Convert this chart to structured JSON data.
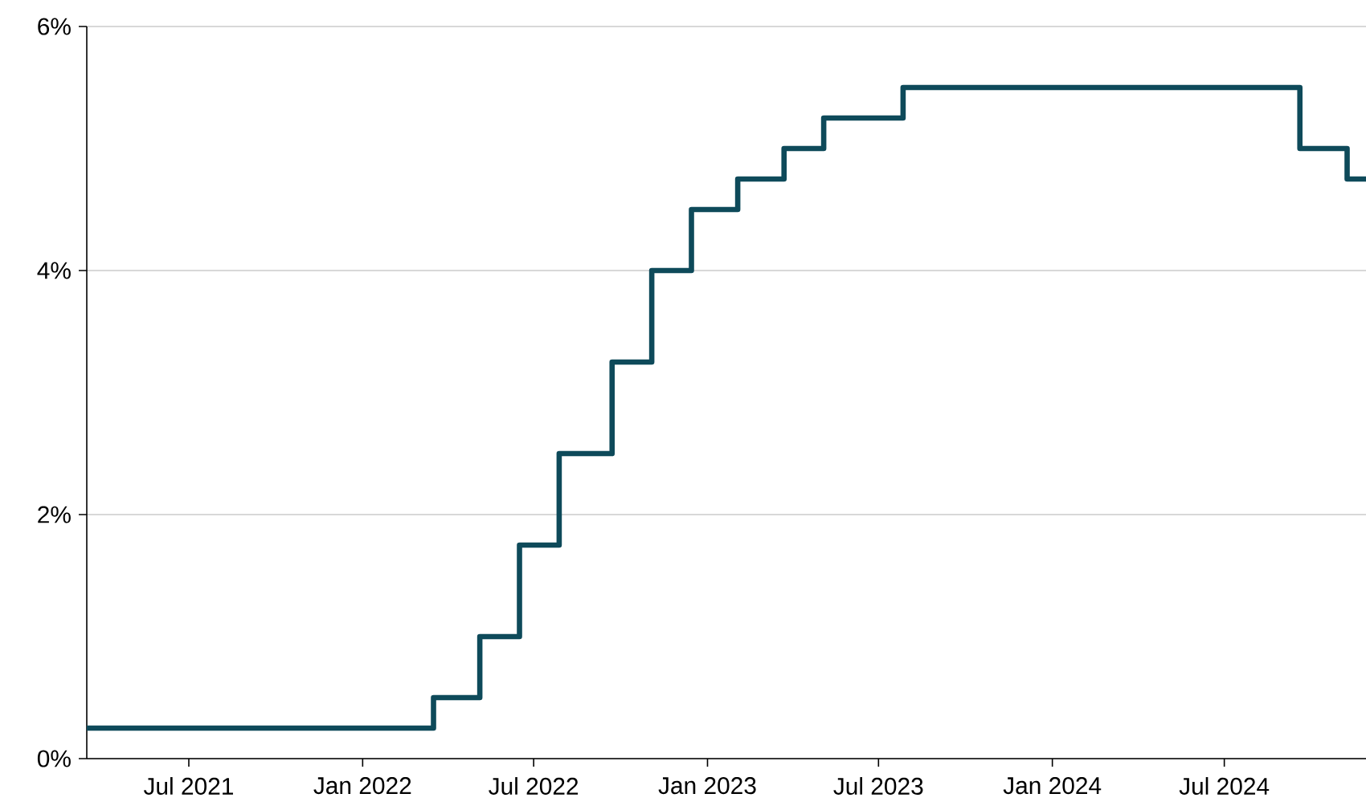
{
  "chart_data": {
    "type": "step",
    "x": [
      "2021-03-15",
      "2022-03-17",
      "2022-05-05",
      "2022-06-16",
      "2022-07-28",
      "2022-09-22",
      "2022-11-03",
      "2022-12-15",
      "2023-02-02",
      "2023-03-23",
      "2023-05-04",
      "2023-07-27",
      "2024-09-19",
      "2024-11-08",
      "2024-11-28"
    ],
    "series": [
      {
        "color": "#0e4a5a",
        "values": [
          0.25,
          0.5,
          1.0,
          1.75,
          2.5,
          3.25,
          4.0,
          4.5,
          4.75,
          5.0,
          5.25,
          5.5,
          5.0,
          4.75,
          4.75
        ]
      }
    ],
    "xlim": [
      "2021-03-15",
      "2024-11-28"
    ],
    "xticks": [
      {
        "value": "2021-07-01",
        "label": "Jul 2021"
      },
      {
        "value": "2022-01-01",
        "label": "Jan 2022"
      },
      {
        "value": "2022-07-01",
        "label": "Jul 2022"
      },
      {
        "value": "2023-01-01",
        "label": "Jan 2023"
      },
      {
        "value": "2023-07-01",
        "label": "Jul 2023"
      },
      {
        "value": "2024-01-01",
        "label": "Jan 2024"
      },
      {
        "value": "2024-07-01",
        "label": "Jul 2024"
      }
    ],
    "ylim": [
      0,
      6
    ],
    "yticks": [
      {
        "value": 0,
        "label": "0%"
      },
      {
        "value": 2,
        "label": "2%"
      },
      {
        "value": 4,
        "label": "4%"
      },
      {
        "value": 6,
        "label": "6%"
      }
    ],
    "grid": "y"
  }
}
